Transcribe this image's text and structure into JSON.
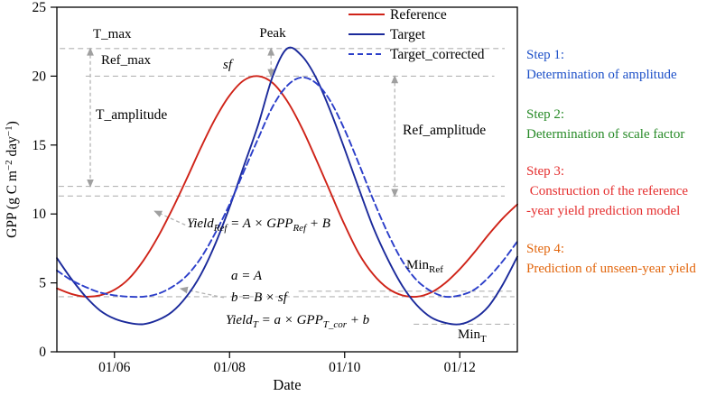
{
  "colors": {
    "reference": "#cf2318",
    "target": "#1b2a9b",
    "target_corrected": "#2b3ec9",
    "grid": "#b4b4b4",
    "annotation_blue": "#1d50c8",
    "annotation_green": "#278a27",
    "formula": "#bd7b0f",
    "axis": "#000000",
    "step1": "#1d50c8",
    "step2": "#278a27",
    "step3": "#e52e2e",
    "step4": "#e2660d"
  },
  "axis": {
    "ylabel_p1": "GPP (g C m",
    "ylabel_sup1": "−2",
    "ylabel_p2": " day",
    "ylabel_sup2": "−1",
    "ylabel_p3": ")"
  },
  "annotations": {
    "t_max": "T_max",
    "ref_max": "Ref_max",
    "peak": "Peak",
    "sf": "sf",
    "t_amplitude": "T_amplitude",
    "ref_amplitude": "Ref_amplitude",
    "min_ref": {
      "base": "Min",
      "sub": "Ref"
    },
    "min_t": {
      "base": "Min",
      "sub": "T"
    },
    "formula_ref": {
      "p1": "Yield",
      "p2": "Ref",
      "p3": " = A × GPP",
      "p4": "Ref",
      "p5": " + B"
    },
    "formula_a": "a  = A",
    "formula_b": "b  = B × sf",
    "formula_t": {
      "p1": "Yield",
      "p2": "T",
      "p3": " = a × GPP",
      "p4": "T_cor",
      "p5": " + b"
    }
  },
  "steps": {
    "s1": {
      "title": "Step 1:",
      "line1": "Determination of amplitude",
      "color": "#1d50c8"
    },
    "s2": {
      "title": "Step 2:",
      "line1": "Determination of scale factor",
      "color": "#278a27"
    },
    "s3": {
      "title": "Step 3:",
      "line1": " Construction of the reference",
      "line2": "-year yield prediction model",
      "color": "#e52e2e"
    },
    "s4": {
      "title": "Step 4:",
      "line1": "Prediction of unseen-year yield",
      "color": "#e2660d"
    }
  },
  "chart_data": {
    "type": "line",
    "title": "",
    "xlabel": "Date",
    "ylabel": "GPP (g C m-2 day-1)",
    "xlim": [
      5,
      13
    ],
    "ylim": [
      0,
      25
    ],
    "grid": "dashed-reference-lines",
    "legend_position": "top-right-inside",
    "xticks": [
      {
        "t": 6,
        "label": "01/06"
      },
      {
        "t": 8,
        "label": "01/08"
      },
      {
        "t": 10,
        "label": "01/10"
      },
      {
        "t": 12,
        "label": "01/12"
      }
    ],
    "yticks": [
      {
        "v": 0,
        "label": "0"
      },
      {
        "v": 5,
        "label": "5"
      },
      {
        "v": 10,
        "label": "10"
      },
      {
        "v": 15,
        "label": "15"
      },
      {
        "v": 20,
        "label": "20"
      },
      {
        "v": 25,
        "label": "25"
      }
    ],
    "x": [
      5,
      5.25,
      5.5,
      5.75,
      6,
      6.25,
      6.5,
      6.75,
      7,
      7.25,
      7.5,
      7.75,
      8,
      8.25,
      8.5,
      8.75,
      9,
      9.25,
      9.5,
      9.75,
      10,
      10.25,
      10.5,
      10.75,
      11,
      11.25,
      11.5,
      11.75,
      12,
      12.25,
      12.5,
      12.75,
      13
    ],
    "series": [
      {
        "id": "reference",
        "name": "Reference",
        "color": "#cf2318",
        "style": "solid",
        "max": 20,
        "min": 4,
        "values": [
          4.6,
          4.2,
          4.0,
          4.1,
          4.5,
          5.3,
          6.6,
          8.3,
          10.3,
          12.5,
          14.8,
          16.9,
          18.6,
          19.7,
          20.0,
          19.5,
          18.2,
          16.3,
          14.0,
          11.6,
          9.2,
          7.1,
          5.6,
          4.6,
          4.1,
          4.0,
          4.3,
          5.0,
          6.0,
          7.2,
          8.5,
          9.7,
          10.7
        ]
      },
      {
        "id": "target",
        "name": "Target",
        "color": "#1b2a9b",
        "style": "solid",
        "max": 22,
        "min": 2,
        "values": [
          6.8,
          5.3,
          4.0,
          3.0,
          2.4,
          2.1,
          2.0,
          2.3,
          2.9,
          4.0,
          5.6,
          7.8,
          10.5,
          13.5,
          16.5,
          20.0,
          22.0,
          21.5,
          19.9,
          17.5,
          14.7,
          11.8,
          9.0,
          6.7,
          4.8,
          3.4,
          2.5,
          2.1,
          2.0,
          2.4,
          3.3,
          4.9,
          6.9
        ]
      },
      {
        "id": "target_corrected",
        "name": "Target_corrected",
        "color": "#2b3ec9",
        "style": "dashed",
        "max": 20,
        "min": 4,
        "values": [
          5.9,
          5.2,
          4.7,
          4.3,
          4.1,
          4.0,
          4.0,
          4.2,
          4.7,
          5.5,
          6.8,
          8.6,
          10.7,
          13.1,
          15.5,
          17.8,
          19.3,
          19.9,
          19.5,
          18.2,
          16.1,
          13.6,
          11.0,
          8.6,
          6.6,
          5.2,
          4.4,
          4.0,
          4.1,
          4.5,
          5.4,
          6.6,
          8.0
        ]
      }
    ],
    "gridlines": [
      {
        "y": 22,
        "x1": 5.05,
        "x2": 12.78,
        "meaning": "T_max"
      },
      {
        "y": 20,
        "x1": 5.5,
        "x2": 12.6,
        "meaning": "Ref_max"
      },
      {
        "y": 12,
        "x1": 5.03,
        "x2": 12.78,
        "meaning": "T_mid"
      },
      {
        "y": 11.3,
        "x1": 5.03,
        "x2": 12.78,
        "meaning": "Ref_mid"
      },
      {
        "y": 4.4,
        "x1": 9.2,
        "x2": 12.95,
        "meaning": "Min_Ref_upper"
      },
      {
        "y": 4.0,
        "x1": 5.03,
        "x2": 12.95,
        "meaning": "Min_Ref"
      },
      {
        "y": 2.0,
        "x1": 11.2,
        "x2": 12.95,
        "meaning": "Min_T"
      }
    ],
    "arrows": [
      {
        "x1": 5.58,
        "y1": 22,
        "x2": 5.58,
        "y2": 12,
        "double": true,
        "meaning": "T_amplitude"
      },
      {
        "x1": 10.87,
        "y1": 20,
        "x2": 10.87,
        "y2": 11.3,
        "double": true,
        "meaning": "Ref_amplitude"
      },
      {
        "x1": 8.72,
        "y1": 22,
        "x2": 8.72,
        "y2": 20,
        "double": true,
        "meaning": "sf"
      },
      {
        "x1": 7.23,
        "y1": 9.2,
        "x2": 6.7,
        "y2": 10.2,
        "double": false,
        "meaning": "points-to-reference-curve"
      },
      {
        "x1": 7.9,
        "y1": 3.93,
        "x2": 7.15,
        "y2": 4.58,
        "double": false,
        "meaning": "points-to-corrected-curve"
      }
    ]
  }
}
